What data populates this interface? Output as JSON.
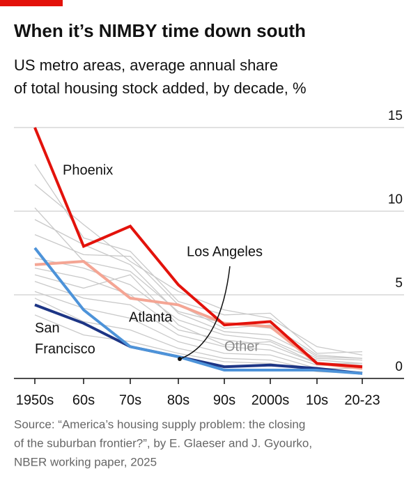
{
  "chart_data": {
    "type": "line",
    "title": "When it’s NIMBY time down south",
    "subtitle": [
      "US metro areas, average annual share",
      "of total housing stock added, by decade, %"
    ],
    "categories": [
      "1950s",
      "60s",
      "70s",
      "80s",
      "90s",
      "2000s",
      "10s",
      "20-23"
    ],
    "ylim": [
      0,
      15
    ],
    "yticks": [
      0,
      5,
      10,
      15
    ],
    "grid": true,
    "others": {
      "name": "Other",
      "color": "#c9c9c9",
      "lines": [
        [
          12.8,
          8.4,
          7.6,
          4.6,
          3.8,
          3.9,
          1.5,
          1.6
        ],
        [
          11.6,
          9.2,
          7.0,
          5.2,
          4.1,
          3.6,
          1.9,
          1.4
        ],
        [
          9.5,
          8.0,
          6.8,
          3.9,
          2.8,
          2.6,
          1.2,
          1.1
        ],
        [
          8.6,
          7.4,
          7.3,
          4.4,
          3.0,
          3.2,
          1.4,
          1.2
        ],
        [
          7.2,
          6.6,
          5.6,
          3.5,
          2.6,
          2.3,
          1.1,
          0.9
        ],
        [
          6.2,
          5.4,
          6.2,
          3.2,
          2.0,
          2.2,
          0.9,
          0.8
        ],
        [
          5.8,
          4.8,
          4.4,
          2.6,
          1.9,
          1.7,
          0.8,
          0.7
        ],
        [
          5.2,
          4.2,
          3.6,
          2.2,
          1.5,
          1.4,
          0.6,
          0.6
        ],
        [
          4.8,
          3.4,
          2.9,
          1.8,
          1.2,
          1.1,
          0.5,
          0.4
        ],
        [
          3.8,
          2.6,
          2.2,
          1.5,
          1.0,
          0.9,
          0.4,
          0.3
        ],
        [
          6.6,
          6.0,
          5.0,
          2.9,
          2.3,
          2.0,
          0.9,
          0.9
        ],
        [
          10.2,
          7.0,
          6.4,
          4.0,
          3.3,
          3.0,
          1.3,
          1.2
        ]
      ]
    },
    "series": [
      {
        "name": "Atlanta",
        "color": "#f4a594",
        "values": [
          6.8,
          7.0,
          4.8,
          4.4,
          3.3,
          3.1,
          0.9,
          0.6
        ]
      },
      {
        "name": "San Francisco",
        "color": "#1d3585",
        "values": [
          4.4,
          3.3,
          1.9,
          1.3,
          0.7,
          0.8,
          0.6,
          0.3
        ]
      },
      {
        "name": "Los Angeles",
        "color": "#4d93d9",
        "values": [
          7.8,
          4.1,
          1.9,
          1.3,
          0.5,
          0.5,
          0.5,
          0.3
        ]
      },
      {
        "name": "Phoenix",
        "color": "#e3120b",
        "values": [
          15,
          7.9,
          9.1,
          5.6,
          3.2,
          3.4,
          0.9,
          0.7
        ]
      }
    ],
    "source": [
      "Source: “America’s housing supply problem: the closing",
      "of the suburban frontier?”, by E. Glaeser and J. Gyourko,",
      "NBER working paper, 2025"
    ]
  }
}
